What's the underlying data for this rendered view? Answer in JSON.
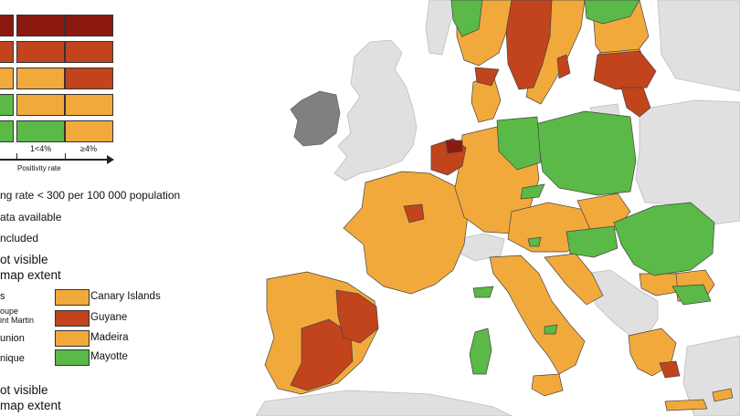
{
  "colors": {
    "sea": "#ffffff",
    "non_eu_land": "#e0e0e0",
    "not_included": "#808080",
    "green": "#5ab947",
    "orange": "#f2a93b",
    "red": "#c2441c",
    "dark_red": "#8a1a10",
    "border": "#444444"
  },
  "legend": {
    "grid_rows": [
      [
        "dark_red",
        "dark_red",
        "dark_red"
      ],
      [
        "red",
        "red",
        "red"
      ],
      [
        "orange",
        "orange",
        "red"
      ],
      [
        "green",
        "orange",
        "orange"
      ],
      [
        "green",
        "green",
        "orange"
      ]
    ],
    "tick_low": "1<4%",
    "tick_high": "≥4%",
    "axis_label": "Positivity rate",
    "testing_note": "ng rate < 300 per 100 000 population",
    "no_data": "ata available",
    "not_included": "ncluded",
    "not_visible_1_line1": "ot visible",
    "not_visible_1_line2": " map extent",
    "not_visible_2_line1": "ot visible",
    "not_visible_2_line2": " map extent"
  },
  "outermost_regions": {
    "left_items": [
      {
        "label": "s",
        "size": "normal"
      },
      {
        "label": "oupe",
        "size": "small"
      },
      {
        "label": "int Martin",
        "size": "small"
      },
      {
        "label": "union",
        "size": "normal"
      },
      {
        "label": "nique",
        "size": "normal"
      }
    ],
    "right_items": [
      {
        "label": "Canary Islands",
        "color": "orange"
      },
      {
        "label": "Guyane",
        "color": "red"
      },
      {
        "label": "Madeira",
        "color": "orange"
      },
      {
        "label": "Mayotte",
        "color": "green"
      }
    ]
  }
}
